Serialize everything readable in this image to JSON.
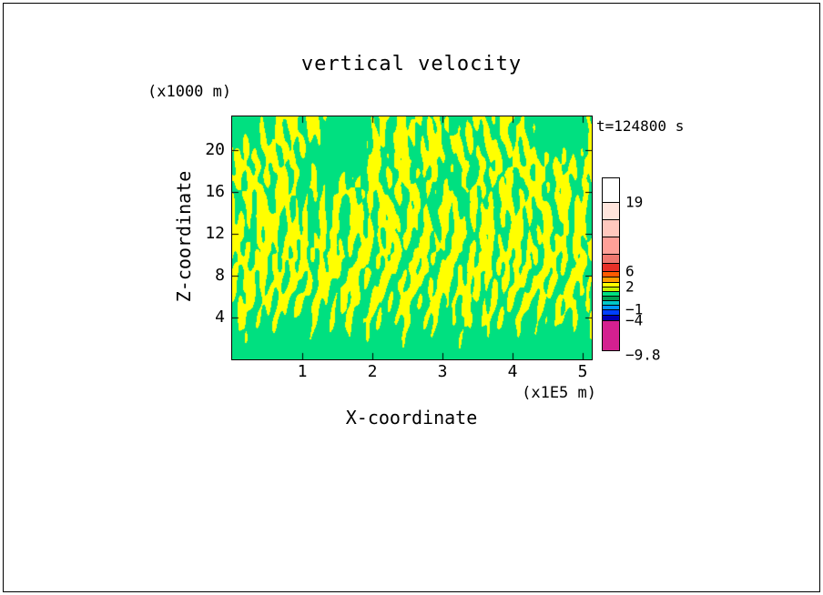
{
  "chart_data": {
    "type": "heatmap",
    "title": "vertical velocity",
    "time_label": "t=124800 s",
    "x_axis": {
      "label": "X-coordinate",
      "unit_label": "(x1E5 m)",
      "ticks": [
        1,
        2,
        3,
        4,
        5
      ],
      "range": [
        0,
        5.13
      ]
    },
    "z_axis": {
      "label": "Z-coordinate",
      "unit_label": "(x1000 m)",
      "ticks": [
        4,
        8,
        12,
        16,
        20
      ],
      "range": [
        0,
        23.2
      ]
    },
    "field": {
      "description": "two-tone filled contour field of vertical velocity, yellow = weakly positive band, green = adjacent band, chaotic narrow vertical plumes",
      "positive_color": "#FFFF00",
      "negative_color": "#00E080",
      "noise_seed": 42
    },
    "colorbar": {
      "segments": [
        {
          "color": "#FFFFFF",
          "h": 26
        },
        {
          "color": "#FFE4DC",
          "h": 19
        },
        {
          "color": "#FFC8BE",
          "h": 19
        },
        {
          "color": "#FFA098",
          "h": 19
        },
        {
          "color": "#F07870",
          "h": 10
        },
        {
          "color": "#E83028",
          "h": 9
        },
        {
          "color": "#FF5A00",
          "h": 6
        },
        {
          "color": "#FF9C00",
          "h": 6
        },
        {
          "color": "#FFFF00",
          "h": 5
        },
        {
          "color": "#C8F000",
          "h": 5
        },
        {
          "color": "#00E080",
          "h": 5
        },
        {
          "color": "#00A050",
          "h": 5
        },
        {
          "color": "#00C8C8",
          "h": 5
        },
        {
          "color": "#0096FF",
          "h": 5
        },
        {
          "color": "#0040FF",
          "h": 6
        },
        {
          "color": "#0000B4",
          "h": 6
        },
        {
          "color": "#D42090",
          "h": 33
        }
      ],
      "labels": [
        {
          "text": "19",
          "offset": 26
        },
        {
          "text": "6",
          "offset": 102
        },
        {
          "text": "2",
          "offset": 119
        },
        {
          "text": "−1",
          "offset": 144
        },
        {
          "text": "−4",
          "offset": 156
        },
        {
          "text": "−9.8",
          "offset": 194
        }
      ]
    }
  }
}
